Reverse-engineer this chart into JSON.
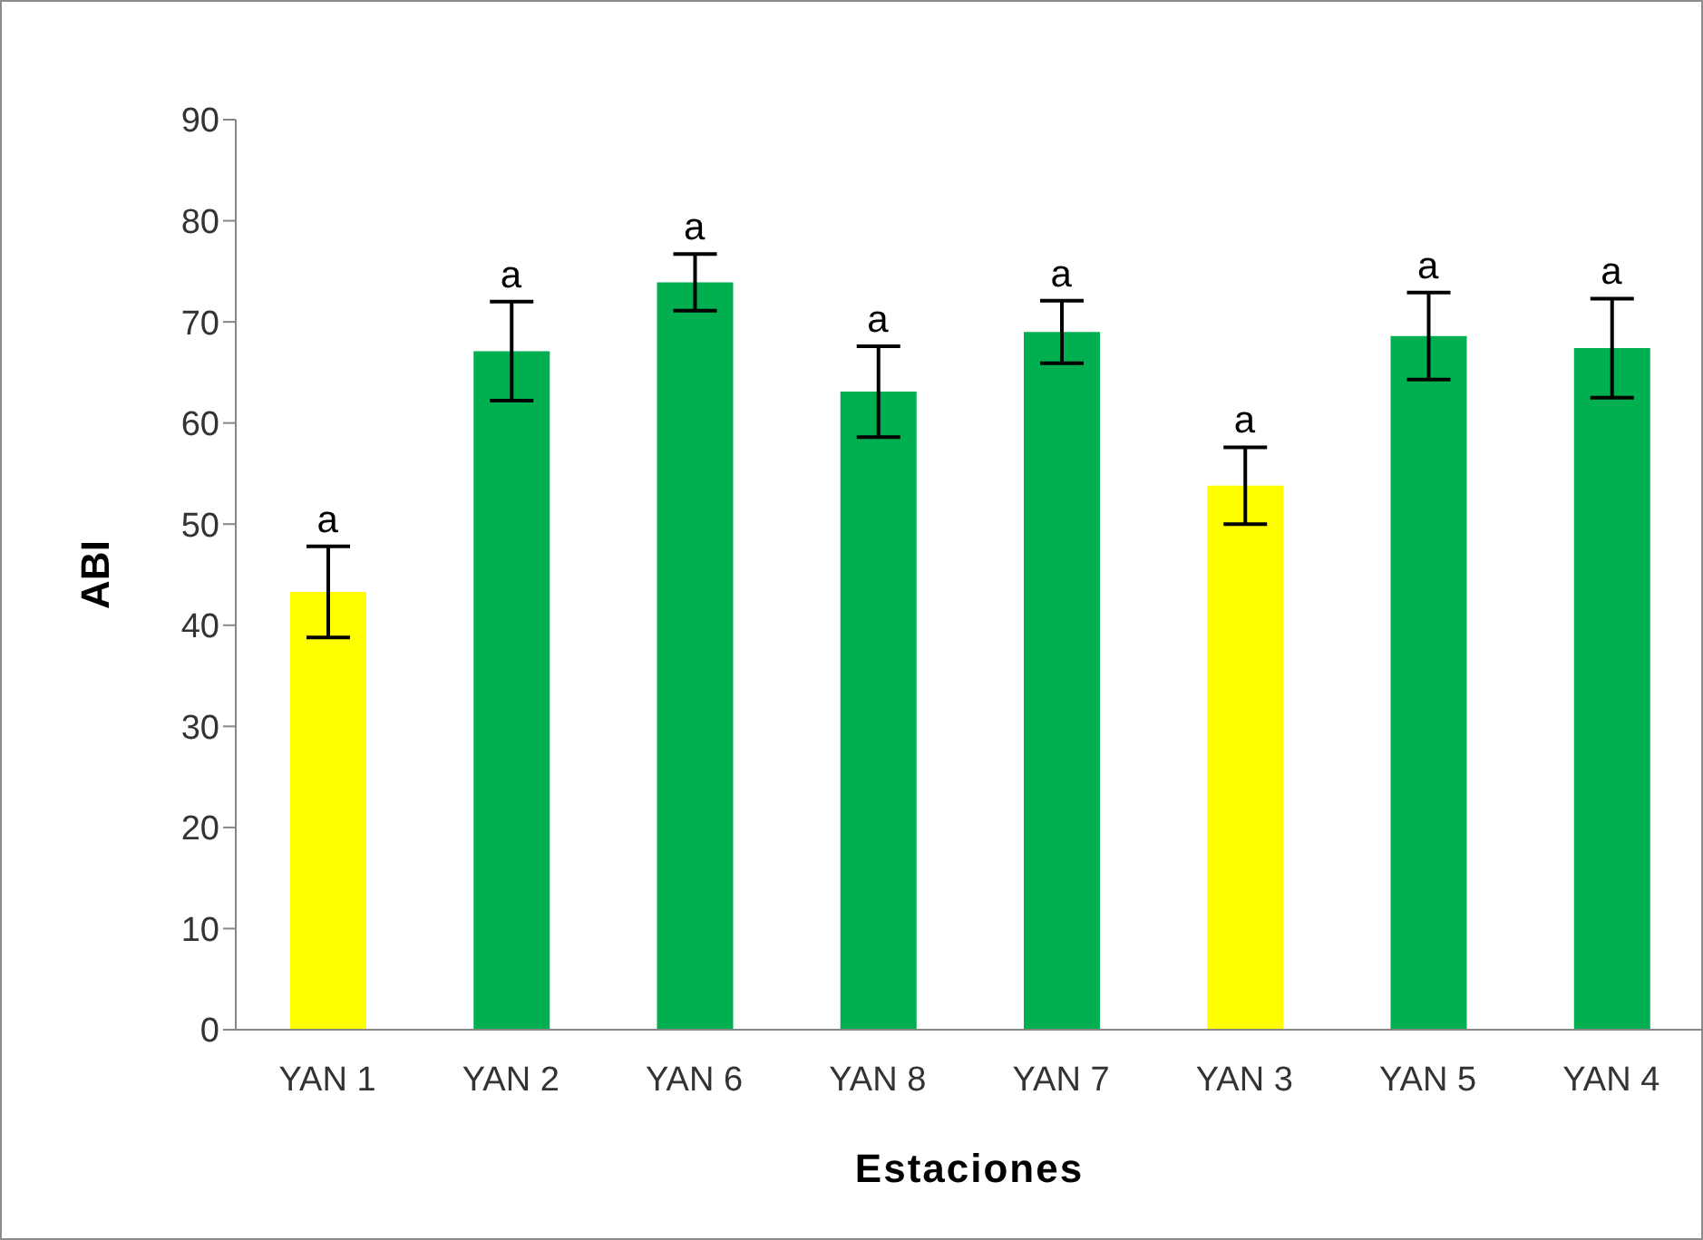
{
  "chart_data": {
    "type": "bar",
    "xlabel": "Estaciones",
    "ylabel": "ABI",
    "categories": [
      "YAN 1",
      "YAN 2",
      "YAN 6",
      "YAN 8",
      "YAN 7",
      "YAN 3",
      "YAN 5",
      "YAN 4"
    ],
    "values": [
      43.3,
      67.1,
      73.9,
      63.1,
      69.0,
      53.8,
      68.6,
      67.4
    ],
    "errors": [
      4.5,
      4.9,
      2.8,
      4.5,
      3.1,
      3.8,
      4.3,
      4.9
    ],
    "colors": [
      "#ffff00",
      "#00b050",
      "#00b050",
      "#00b050",
      "#00b050",
      "#ffff00",
      "#00b050",
      "#00b050"
    ],
    "ylim": [
      0,
      90
    ],
    "yticks": [
      0,
      10,
      20,
      30,
      40,
      50,
      60,
      70,
      80,
      90
    ],
    "grid": false,
    "legend": false,
    "annotations": [
      {
        "text": "a",
        "x": "YAN 1",
        "y": 47.8
      },
      {
        "text": "a",
        "x": "YAN 2",
        "y": 72.0
      },
      {
        "text": "a",
        "x": "YAN 6",
        "y": 76.7
      },
      {
        "text": "a",
        "x": "YAN 8",
        "y": 67.6
      },
      {
        "text": "a",
        "x": "YAN 7",
        "y": 72.1
      },
      {
        "text": "a",
        "x": "YAN 3",
        "y": 57.6
      },
      {
        "text": "a",
        "x": "YAN 5",
        "y": 72.9
      },
      {
        "text": "a",
        "x": "YAN 4",
        "y": 72.3
      }
    ]
  }
}
